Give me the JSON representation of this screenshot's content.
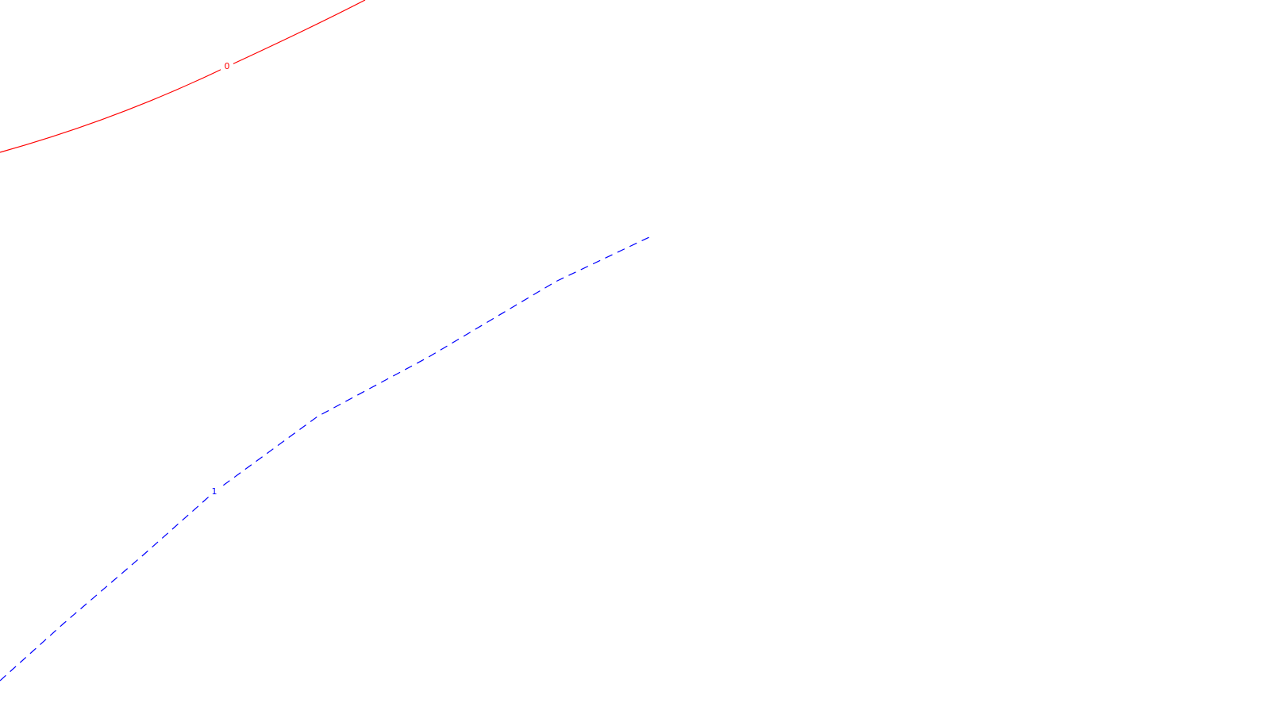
{
  "contours": [
    {
      "level_label": "0",
      "color": "#ff0000",
      "dashed": false
    },
    {
      "level_label": "1",
      "color": "#0000ff",
      "dashed": true
    }
  ]
}
